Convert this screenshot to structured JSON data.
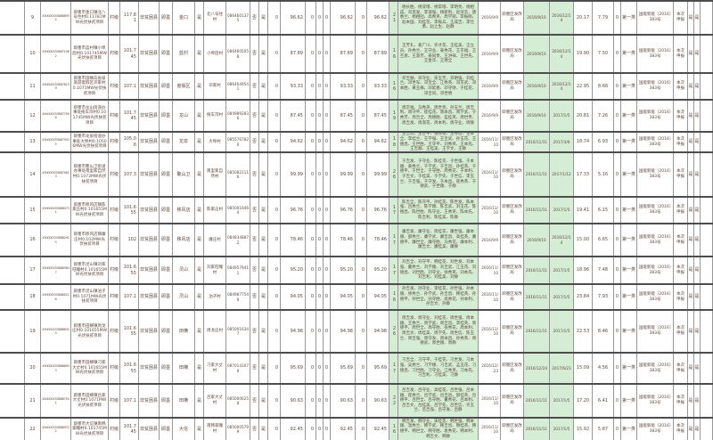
{
  "table_description": "光伏扶贫项目村级电站明细表（第9-22行）",
  "shared": {
    "level_label": "村级",
    "county_type": "非贫困县",
    "city": "即墨",
    "agency": "即墨区发改局",
    "category": "第一类",
    "doc_ref": "国能新能〔2016〕383号",
    "declare": "本次申报",
    "green_highlight_color": "#d4edd4",
    "text_color": "#5f473d"
  },
  "rows": [
    {
      "num": "9",
      "id": "4500000338888934",
      "project": "即墨市金口镇北八号住村0.11781MW光伏扶贫项目",
      "level": "村级",
      "capacity": "117.81",
      "county": "非贫困县",
      "city": "即墨",
      "town": "金口",
      "flag1": "是",
      "village": "北八号住村",
      "code": "0864601375",
      "no": "否",
      "yes": "是",
      "z1": "0",
      "pct1": "96.62",
      "z2": "0",
      "z3": "0",
      "z4": "0",
      "pct2": "96.62",
      "z5": "0",
      "pct3": "96.62",
      "count": "21",
      "names": "杨长胜、杨双增、杨常增、李明亮、杨相成、刘克发、李瑞强、杨新利、赵深云、唐春兰、杨相团、高希英、周学丽、李振刚、赵本国、刘桂花、李振兵、王成吉、李仕勇、赵之生、赵静",
      "date1": "2016/9/9",
      "agency": "即墨区发改局",
      "date2": "2016/9/10",
      "date3": "2016/12/14",
      "val1": "20.17",
      "val2": "7.79",
      "z6": "0",
      "category": "第一类",
      "doc": "国能新能〔2016〕383号",
      "declare": "本次申报",
      "y1": "是",
      "y2": "是"
    },
    {
      "num": "10",
      "id": "4500000338871062",
      "project": "即墨市蓝村镇小埠后村0.101745MW光伏扶贫项目",
      "level": "村级",
      "capacity": "101.745",
      "county": "非贫困县",
      "city": "即墨",
      "town": "蓝村",
      "flag1": "是",
      "village": "小埠后村",
      "code": "0864605058",
      "no": "否",
      "yes": "是",
      "z1": "0",
      "pct1": "87.89",
      "z2": "0",
      "z3": "0",
      "z4": "0",
      "pct2": "87.89",
      "z5": "0",
      "pct3": "87.89",
      "count": "16",
      "names": "王芳礼、姜广川、许才花、王桂美、王立员、孙秀兰、王守业、姜秀花、王京福、王丕恩、王淑芳、姜同贵、王洪祥、王世先、王金华、王德全",
      "date1": "2016/9/9",
      "agency": "即墨区发改局",
      "date2": "2016/9/10",
      "date3": "2016/12/14",
      "val1": "19.90",
      "val2": "7.50",
      "z6": "0",
      "category": "第一类",
      "doc": "国能新能〔2016〕383号",
      "declare": "本次申报",
      "y1": "是",
      "y2": "是"
    },
    {
      "num": "11",
      "id": "4500000338876239",
      "project": "即墨市田横岛省级旅游度假区邓家村0.1071MW光伏扶贫项目",
      "level": "村级",
      "capacity": "107.1",
      "county": "非贫困县",
      "city": "即墨",
      "town": "度假区",
      "flag1": "是",
      "village": "邓家村",
      "code": "0864649541",
      "no": "否",
      "yes": "是",
      "z1": "0",
      "pct1": "93.33",
      "z2": "0",
      "z3": "0",
      "z4": "0",
      "pct2": "93.33",
      "z5": "0",
      "pct3": "93.33",
      "count": "16",
      "names": "邓吉顺、邓守业、宋玉芳、邓明强、刘桂兰、邓世军、邓宝全、江秀英、邓京武、邓本胜、黄玉梅、邓延春、邓守财、于桂花、邓吉同、邓世明",
      "date1": "2016/9/9",
      "agency": "即墨区发改局",
      "date2": "2016/9/10",
      "date3": "2016/12/14",
      "val1": "22.95",
      "val2": "8.68",
      "z6": "0",
      "category": "第一类",
      "doc": "国能新能〔2016〕383号",
      "declare": "本次申报",
      "y1": "是",
      "y2": "是"
    },
    {
      "num": "12",
      "id": "4500000338877598",
      "project": "即墨市龙山街道办事处拖车夼村0.101745MW光伏扶贫项目",
      "level": "村级",
      "capacity": "101.745",
      "county": "非贫困县",
      "city": "即墨",
      "town": "龙山",
      "flag1": "是",
      "village": "拖车夼村",
      "code": "0849892836",
      "no": "否",
      "yes": "是",
      "z1": "0",
      "pct1": "87.45",
      "z2": "0",
      "z3": "0",
      "z4": "0",
      "pct2": "87.45",
      "z5": "0",
      "pct3": "87.45",
      "count": "19",
      "names": "周京福、马秀英、周世亮、孙玉兰、周吉利、周守平、崔桂花、周本昌、周学武、于秀芳、周吉全、周德胜、蓝桂英、周世传、周吉发、周淑花、周本利、周守业、周静",
      "date1": "2016/9/9",
      "agency": "即墨区发改局",
      "date2": "2016/9/10",
      "date3": "2017/1/5",
      "val1": "20.81",
      "val2": "7.26",
      "z6": "0",
      "category": "第一类",
      "doc": "国能新能〔2016〕383号",
      "declare": "本次申报",
      "y1": "是",
      "y2": "是"
    },
    {
      "num": "13",
      "id": "4500000338879035",
      "project": "即墨市龙泉街道办事处大埠村0.10506MW光伏扶贫项目",
      "level": "村级",
      "capacity": "105.06",
      "county": "非贫困县",
      "city": "即墨",
      "town": "龙泉",
      "flag1": "是",
      "village": "大埠村",
      "code": "0855767820",
      "no": "否",
      "yes": "是",
      "z1": "0",
      "pct1": "94.62",
      "z2": "0",
      "z3": "0",
      "z4": "0",
      "pct2": "94.62",
      "z5": "0",
      "pct3": "94.62",
      "count": "18",
      "names": "王吉亮、王世平、张秀花、王守信、王本全、李桂兰、王学强、王吉武、孙玉花、王德昌、王世胜、王守平、刘秀英、王本先、王吉顺、王桂美、王学文、王静",
      "date1": "2016/11/10",
      "agency": "即墨区发改局",
      "date2": "2016/11/11",
      "date3": "2017/3/6",
      "val1": "18.74",
      "val2": "6.93",
      "z6": "0",
      "category": "第一类",
      "doc": "国能新能〔2016〕383号",
      "declare": "本次申报",
      "y1": "是",
      "y2": "是"
    },
    {
      "num": "14",
      "id": "4500000338879613",
      "project": "即墨市鳌山卫街道办事处南里家自然村0.1073MW光伏扶贫项目",
      "level": "村级",
      "capacity": "107.3",
      "county": "非贫困县",
      "city": "即墨",
      "town": "鳌山卫",
      "flag1": "是",
      "village": "南里家自然村",
      "code": "0850821116",
      "no": "否",
      "yes": "是",
      "z1": "0",
      "pct1": "99.99",
      "z2": "0",
      "z3": "0",
      "z4": "0",
      "pct2": "99.99",
      "z5": "0",
      "pct3": "99.99",
      "count": "26",
      "names": "于吉发、于守业、陈桂花、于世强、于本顺、姜秀兰、于学武、于吉昌、孙桂英、于德平、于世全、于守胜、周秀花、于本利、于吉文、于桂美、于学先、于世信、李玉兰、于吉强、于守发、于本昌、崔秀英、于德武、于世顺、于静",
      "date1": "2016/11/10",
      "agency": "即墨区发改局",
      "date2": "2016/11/11",
      "date3": "2017/1/12",
      "val1": "17.33",
      "val2": "5.16",
      "z6": "0",
      "category": "第一类",
      "doc": "国能新能〔2016〕383号",
      "declare": "本次申报",
      "y1": "是",
      "y2": "是"
    },
    {
      "num": "15",
      "id": "4500000338880731",
      "project": "即墨市移风店镇陈家庄村0.101655MW光伏扶贫项目",
      "level": "村级",
      "capacity": "101.655",
      "county": "非贫困县",
      "city": "即墨",
      "town": "移风店",
      "flag1": "是",
      "village": "陈家庄村",
      "code": "0850016464",
      "no": "否",
      "yes": "是",
      "z1": "0",
      "pct1": "96.76",
      "z2": "0",
      "z3": "0",
      "z4": "0",
      "pct2": "96.76",
      "z5": "0",
      "pct3": "96.76",
      "count": "17",
      "names": "陈吉全、陈守平、孙桂花、陈世发、陈本强、吕秀兰、陈学顺、陈吉武、刘玉花、陈德昌、陈世胜、陈守业、王秀英、陈本先、陈吉利、陈桂美、陈静",
      "date1": "2016/11/10",
      "agency": "即墨区发改局",
      "date2": "2016/11/11",
      "date3": "2017/1/5",
      "val1": "19.41",
      "val2": "6.15",
      "z6": "0",
      "category": "第一类",
      "doc": "国能新能〔2016〕383号",
      "declare": "本次申报",
      "y1": "是",
      "y2": "是"
    },
    {
      "num": "16",
      "id": "4500000338882915",
      "project": "即墨市移风店镇廉庄村0.102MW光伏扶贫项目",
      "level": "村级",
      "capacity": "102",
      "county": "非贫困县",
      "city": "即墨",
      "town": "移风店",
      "flag1": "是",
      "village": "廉庄村",
      "code": "0848348872",
      "no": "否",
      "yes": "是",
      "z1": "0",
      "pct1": "78.46",
      "z2": "0",
      "z3": "0",
      "z4": "0",
      "pct2": "78.46",
      "z5": "0",
      "pct3": "78.46",
      "count": "17",
      "names": "廉吉发、廉守业、周桂花、廉世强、廉本顺、邵秀兰、廉学武、廉吉昌、高桂英、廉德平、廉世全、廉守胜、马秀花、廉本利、廉吉文、廉桂美、廉静",
      "date1": "2016/9/9",
      "agency": "即墨区发改局",
      "date2": "2016/9/10",
      "date3": "2016/12/14",
      "val1": "15.00",
      "val2": "6.65",
      "z6": "0",
      "category": "第一类",
      "doc": "国能新能〔2016〕383号",
      "declare": "本次申报",
      "y1": "是",
      "y2": "是"
    },
    {
      "num": "17",
      "id": "4500000338883647",
      "project": "即墨市灵山镇刘家旺疃村0.101655MW光伏扶贫项目",
      "level": "村级",
      "capacity": "101.655",
      "county": "非贫困县",
      "city": "即墨",
      "town": "灵山",
      "flag1": "是",
      "village": "刘家旺疃村",
      "code": "0849579411",
      "no": "否",
      "yes": "是",
      "z1": "0",
      "pct1": "95.20",
      "z2": "0",
      "z3": "0",
      "z4": "0",
      "pct2": "95.20",
      "z5": "0",
      "pct3": "95.20",
      "count": "17",
      "names": "刘吉全、刘守平、韩桂花、刘世发、刘本强、董秀兰、刘学顺、刘吉武、江玉花、刘德昌、刘世胜、刘守业、徐秀英、刘本先、刘吉利、刘桂美、刘静",
      "date1": "2016/11/10",
      "agency": "即墨区发改局",
      "date2": "2016/11/11",
      "date3": "2017/1/5",
      "val1": "18.96",
      "val2": "7.48",
      "z6": "0",
      "category": "第一类",
      "doc": "国能新能〔2016〕383号",
      "declare": "本次申报",
      "y1": "是",
      "y2": "是"
    },
    {
      "num": "18",
      "id": "4500000338885218",
      "project": "即墨市灵山镇泊子村0.1071MW光伏扶贫项目",
      "level": "村级",
      "capacity": "107.1",
      "county": "非贫困县",
      "city": "即墨",
      "town": "灵山",
      "flag1": "是",
      "village": "泊子村",
      "code": "0849877549",
      "no": "否",
      "yes": "是",
      "z1": "0",
      "pct1": "94.05",
      "z2": "0",
      "z3": "0",
      "z4": "0",
      "pct2": "94.05",
      "z5": "0",
      "pct3": "94.05",
      "count": "16",
      "names": "孙吉发、孙守业、李桂花、孙世强、孙本顺、修秀兰、孙学武、孙吉昌、韩桂英、孙德平、孙世全、孙守胜、高秀花、孙本利、孙吉文、孙静",
      "date1": "2016/11/10",
      "agency": "即墨区发改局",
      "date2": "2016/11/11",
      "date3": "2017/1/5",
      "val1": "23.84",
      "val2": "7.93",
      "z6": "0",
      "category": "第一类",
      "doc": "国能新能〔2016〕383号",
      "declare": "本次申报",
      "y1": "是",
      "y2": "是"
    },
    {
      "num": "19",
      "id": "4500000338886320",
      "project": "即墨市田横镇周戈庄村0.101655MW光伏扶贫项目",
      "level": "村级",
      "capacity": "101.655",
      "county": "非贫困县",
      "city": "即墨",
      "town": "田横",
      "flag1": "是",
      "village": "周戈庄村",
      "code": "0850016347",
      "no": "否",
      "yes": "是",
      "z1": "0",
      "pct1": "94.98",
      "z2": "0",
      "z3": "0",
      "z4": "0",
      "pct2": "94.98",
      "z5": "0",
      "pct3": "94.98",
      "count": "26",
      "names": "周吉发、周守业、刘桂花、周世强、周本顺、王秀兰、周学武、周吉昌、李桂英、周德平、周世全、周守胜、张秀花、周本利、周吉文、周桂美、周学先、周世信、陈玉兰、周吉强、周守发、周本昌、孙秀英、周德武、周世顺、周静",
      "date1": "2016/11/10",
      "agency": "即墨区发改局",
      "date2": "2016/11/11",
      "date3": "2017/1/5",
      "val1": "22.53",
      "val2": "8.46",
      "z6": "0",
      "category": "第一类",
      "doc": "国能新能〔2016〕383号",
      "declare": "本次申报",
      "y1": "是",
      "y2": "是"
    },
    {
      "num": "20",
      "id": "4500000338886933",
      "project": "即墨市田横镇刁家大丈村0.101655MW光伏扶贫项目",
      "level": "村级",
      "capacity": "101.655",
      "county": "非贫困县",
      "city": "即墨",
      "town": "田横",
      "flag1": "是",
      "village": "刁家大丈村",
      "code": "0870141079",
      "no": "否",
      "yes": "是",
      "z1": "0",
      "pct1": "95.69",
      "z2": "0",
      "z3": "0",
      "z4": "0",
      "pct2": "95.69",
      "z5": "0",
      "pct3": "95.69",
      "count": "17",
      "names": "刁吉全、刁守平、于桂花、刁世发、刁本强、吴秀兰、刁学顺、刁吉武、孟玉花、刁德昌、刁世胜、刁守业、江秀英、刁本先、刁吉利、刁桂美、刁静",
      "date1": "2016/12/23",
      "agency": "即墨区发改局",
      "date2": "2016/12/24",
      "date3": "2017/6/23",
      "val1": "15.09",
      "val2": "4.56",
      "z6": "0",
      "category": "第一类",
      "doc": "国能新能〔2016〕383号",
      "declare": "本次申报",
      "y1": "是",
      "y2": "是"
    },
    {
      "num": "21",
      "id": "4500000338887541",
      "project": "即墨市田横镇吕家大丈村0.1071MW光伏扶贫项目",
      "level": "村级",
      "capacity": "107.1",
      "county": "非贫困县",
      "city": "即墨",
      "town": "田横",
      "flag1": "是",
      "village": "吕家大丈村",
      "code": "0850006258",
      "no": "否",
      "yes": "是",
      "z1": "0",
      "pct1": "90.63",
      "z2": "0",
      "z3": "0",
      "z4": "0",
      "pct2": "90.63",
      "z5": "0",
      "pct3": "90.63",
      "count": "22",
      "names": "吕吉发、吕守业、高桂花、吕世强、吕本顺、崔秀兰、吕学武、吕吉昌、邵桂英、吕德平、吕世全、吕守胜、董秀花、吕本利、吕吉文、吕桂美、吕学先、吕世信、许玉兰、吕吉强、吕守发、吕静",
      "date1": "2016/11/10",
      "agency": "即墨区发改局",
      "date2": "2016/11/11",
      "date3": "2017/1/5",
      "val1": "17.20",
      "val2": "6.41",
      "z6": "0",
      "category": "第一类",
      "doc": "国能新能〔2016〕383号",
      "declare": "本次申报",
      "y1": "是",
      "y2": "是"
    },
    {
      "num": "22",
      "id": "4500000338889722",
      "project": "即墨市大信镇南韩家疃村0.101745MW光伏扶贫项目",
      "level": "村级",
      "capacity": "101.745",
      "county": "非贫困县",
      "city": "即墨",
      "town": "大信",
      "flag1": "是",
      "village": "南韩家疃村",
      "code": "0850005799",
      "no": "否",
      "yes": "是",
      "z1": "0",
      "pct1": "92.45",
      "z2": "0",
      "z3": "0",
      "z4": "0",
      "pct2": "92.45",
      "z5": "0",
      "pct3": "92.45",
      "count": "16",
      "names": "韩吉发、韩守业、宋桂花、韩世强、韩本顺、温秀兰、韩学武、韩吉昌、隋桂英、韩德平、韩世全、韩守胜、袁秀花、韩本利、韩吉文、韩静",
      "date1": "2016/11/10",
      "agency": "即墨区发改局",
      "date2": "2016/11/11",
      "date3": "2017/1/5",
      "val1": "15.92",
      "val2": "5.87",
      "z6": "0",
      "category": "第一类",
      "doc": "国能新能〔2016〕383号",
      "declare": "本次申报",
      "y1": "是",
      "y2": "是"
    }
  ]
}
